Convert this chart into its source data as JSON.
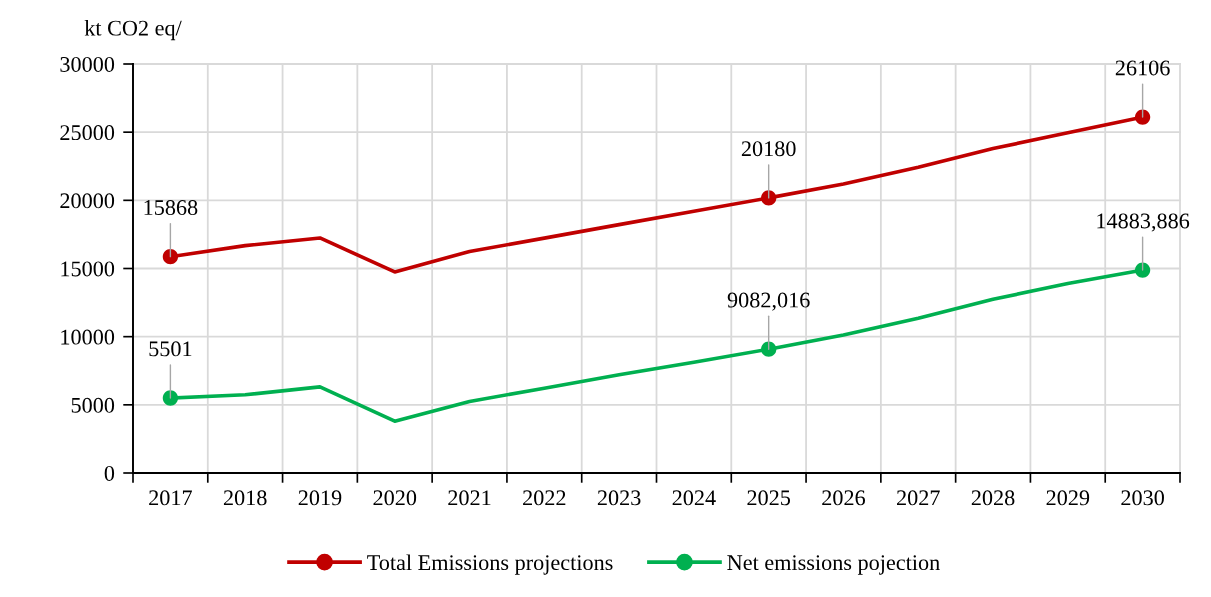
{
  "chart_data": {
    "type": "line",
    "ylabel": "kt CO2 eq/",
    "categories": [
      "2017",
      "2018",
      "2019",
      "2020",
      "2021",
      "2022",
      "2023",
      "2024",
      "2025",
      "2026",
      "2027",
      "2028",
      "2029",
      "2030"
    ],
    "series": [
      {
        "name": "Total Emissions projections",
        "color": "#c00000",
        "values": [
          15868,
          16680,
          17240,
          14750,
          16250,
          17230,
          18220,
          19200,
          20180,
          21200,
          22430,
          23800,
          24950,
          26106
        ]
      },
      {
        "name": "Net emissions pojection",
        "color": "#00b050",
        "values": [
          5501,
          5740,
          6320,
          3800,
          5250,
          6220,
          7200,
          8120,
          9082.016,
          10120,
          11350,
          12740,
          13900,
          14883.886
        ]
      },
      {
        "type": "scatter",
        "marker": "circle",
        "color": "#c00000",
        "values": [
          15868,
          null,
          null,
          null,
          null,
          null,
          null,
          null,
          20180,
          null,
          null,
          null,
          null,
          26106
        ],
        "value_labels": [
          "15868",
          null,
          null,
          null,
          null,
          null,
          null,
          null,
          "20180",
          null,
          null,
          null,
          null,
          "26106"
        ]
      },
      {
        "type": "scatter",
        "marker": "circle",
        "color": "#00b050",
        "values": [
          5501,
          null,
          null,
          null,
          null,
          null,
          null,
          null,
          9082.016,
          null,
          null,
          null,
          null,
          14883.886
        ],
        "value_labels": [
          "5501",
          null,
          null,
          null,
          null,
          null,
          null,
          null,
          "9082,016",
          null,
          null,
          null,
          null,
          "14883,886"
        ]
      }
    ],
    "ylim": [
      0,
      30000
    ],
    "yticks": [
      0,
      5000,
      10000,
      15000,
      20000,
      25000,
      30000
    ],
    "grid": true,
    "legend": "bottom",
    "line_style": "solid"
  }
}
